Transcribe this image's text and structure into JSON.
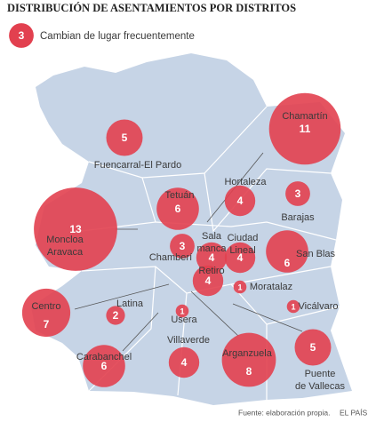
{
  "title": "DISTRIBUCIÓN DE ASENTAMIENTOS POR DISTRITOS",
  "legend": {
    "value": 3,
    "label": "Cambian de lugar frecuentemente"
  },
  "districts": [
    {
      "name": [
        "Chamartín"
      ],
      "value": 11
    },
    {
      "name": [
        "Fuencarral-El Pardo"
      ],
      "value": 5
    },
    {
      "name": [
        "Moncloa",
        "Aravaca"
      ],
      "value": 13
    },
    {
      "name": [
        "Tetuán"
      ],
      "value": 6
    },
    {
      "name": [
        "Hortaleza"
      ],
      "value": 4
    },
    {
      "name": [
        "Barajas"
      ],
      "value": 3
    },
    {
      "name": [
        "Chamberí"
      ],
      "value": 3
    },
    {
      "name": [
        "Sala",
        "manca"
      ],
      "value": 4
    },
    {
      "name": [
        "Ciudad",
        "Lineal"
      ],
      "value": 4
    },
    {
      "name": [
        "Retiro"
      ],
      "value": 4
    },
    {
      "name": [
        "San Blas"
      ],
      "value": 6
    },
    {
      "name": [
        "Moratalaz"
      ],
      "value": 1
    },
    {
      "name": [
        "Vicálvaro"
      ],
      "value": 1
    },
    {
      "name": [
        "Centro"
      ],
      "value": 7
    },
    {
      "name": [
        "Latina"
      ],
      "value": 2
    },
    {
      "name": [
        "Usera"
      ],
      "value": 1
    },
    {
      "name": [
        "Villaverde"
      ],
      "value": 4
    },
    {
      "name": [
        "Arganzuela"
      ],
      "value": 8
    },
    {
      "name": [
        "Puente",
        "de Vallecas"
      ],
      "value": 5
    },
    {
      "name": [
        "Carabanchel"
      ],
      "value": 6
    }
  ],
  "source": "Fuente: elaboración propia.",
  "credit": "EL PAÍS"
}
